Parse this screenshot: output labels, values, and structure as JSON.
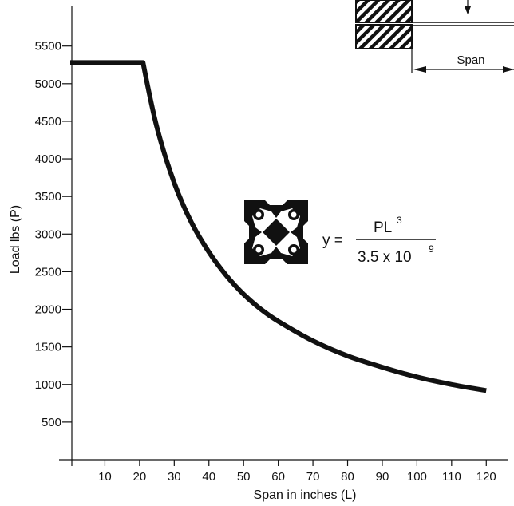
{
  "chart_data": {
    "type": "line",
    "title": "",
    "xlabel": "Span in inches (L)",
    "ylabel": "Load lbs (P)",
    "xlim": [
      0,
      125
    ],
    "ylim": [
      0,
      5900
    ],
    "x_ticks": [
      10,
      20,
      30,
      40,
      50,
      60,
      70,
      80,
      90,
      100,
      110,
      120
    ],
    "y_ticks": [
      500,
      1000,
      1500,
      2000,
      2500,
      3000,
      3500,
      4000,
      4500,
      5000,
      5500
    ],
    "grid": false,
    "legend": "none",
    "series": [
      {
        "x": [
          0,
          21,
          25,
          30,
          35,
          40,
          45,
          50,
          55,
          60,
          70,
          80,
          90,
          100,
          110,
          120
        ],
        "y": [
          5280,
          5280,
          4420,
          3680,
          3150,
          2760,
          2450,
          2200,
          2000,
          1840,
          1580,
          1380,
          1230,
          1100,
          1000,
          920
        ]
      }
    ],
    "formula": {
      "lhs": "y =",
      "numerator": "PL",
      "numerator_exp": "3",
      "denominator": "3.5 x 10",
      "denominator_exp": "9"
    },
    "span_label": "Span",
    "colors": {
      "line": "#111111",
      "axis": "#111111",
      "hatch": "#111111"
    },
    "icons": [
      "extrusion-profile-icon",
      "cantilever-diagram"
    ]
  }
}
